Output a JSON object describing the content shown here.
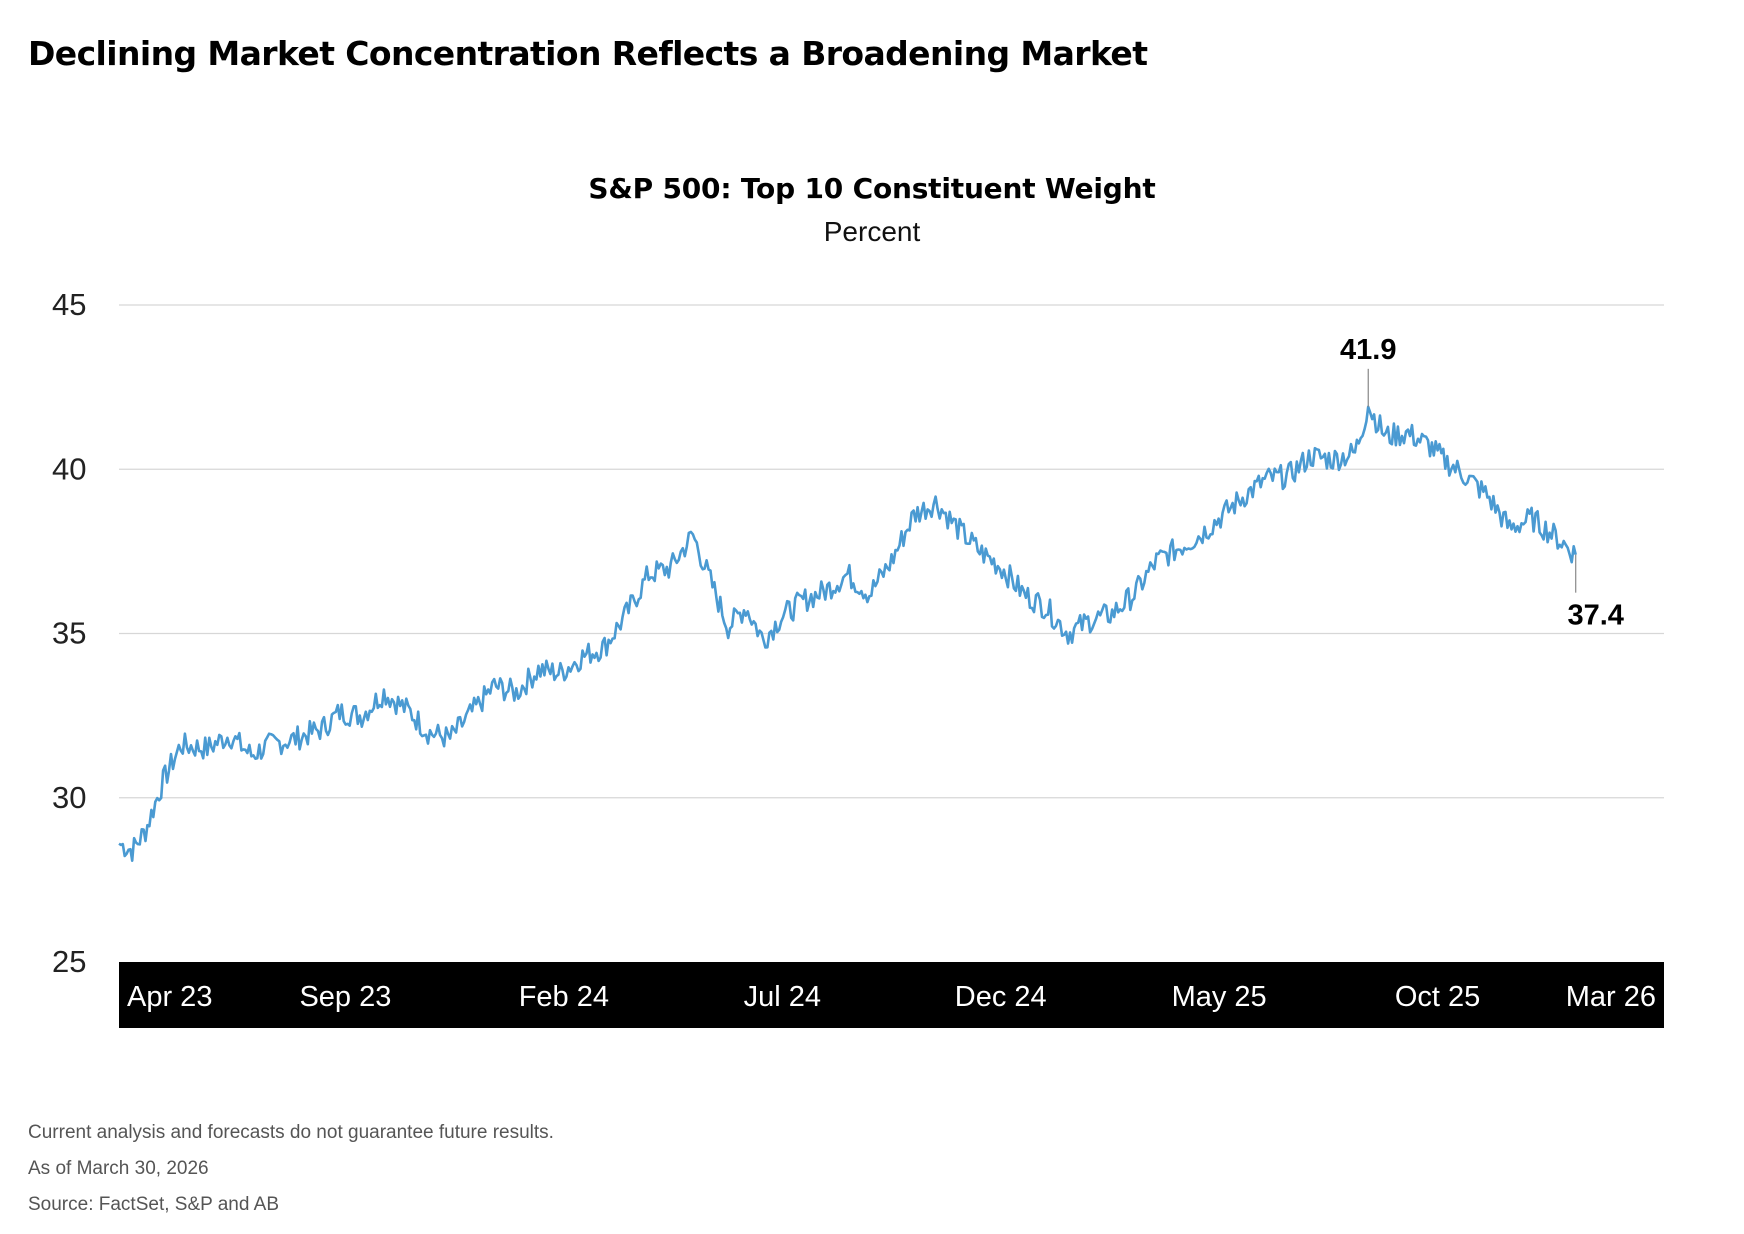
{
  "page_title": "Declining Market Concentration Reflects a Broadening Market",
  "chart_data": {
    "type": "line",
    "title": "S&P 500: Top 10 Constituent Weight",
    "subtitle": "Percent",
    "ylim": [
      25,
      45
    ],
    "yticks": [
      "45",
      "40",
      "35",
      "30",
      "25"
    ],
    "x_tick_labels": [
      "Apr 23",
      "Sep 23",
      "Feb 24",
      "Jul 24",
      "Dec 24",
      "May 25",
      "Oct 25",
      "Mar 26"
    ],
    "x_range": [
      "Apr 23",
      "Mar 26"
    ],
    "grid": true,
    "line_color": "#4a9ad2",
    "series": [
      {
        "x_months": [
          "Apr 23",
          "May 23",
          "Jun 23",
          "Jul 23",
          "Aug 23",
          "Sep 23",
          "Oct 23",
          "Nov 23",
          "Dec 23",
          "Jan 24",
          "Feb 24",
          "Mar 24",
          "Apr 24",
          "May 24",
          "Jun 24",
          "Jul 24",
          "Aug 24",
          "Sep 24",
          "Oct 24",
          "Nov 24",
          "Dec 24",
          "Jan 25",
          "Feb 25",
          "Mar 25",
          "Apr 25",
          "May 25",
          "Jun 25",
          "Jul 25",
          "Aug 25",
          "Sep 25",
          "Oct 25",
          "Nov 25",
          "Dec 25",
          "Jan 26",
          "Feb 26",
          "Mar 26"
        ],
        "points": [
          [
            0,
            28.6
          ],
          [
            0.3,
            28.4
          ],
          [
            0.6,
            29.0
          ],
          [
            1.0,
            30.5
          ],
          [
            1.4,
            31.6
          ],
          [
            2.0,
            31.5
          ],
          [
            2.5,
            31.9
          ],
          [
            3.0,
            31.3
          ],
          [
            3.4,
            31.6
          ],
          [
            4.0,
            31.8
          ],
          [
            4.6,
            32.1
          ],
          [
            5.0,
            32.6
          ],
          [
            5.5,
            32.5
          ],
          [
            6.0,
            33.2
          ],
          [
            6.6,
            32.6
          ],
          [
            7.0,
            32.0
          ],
          [
            7.5,
            31.8
          ],
          [
            8.0,
            32.6
          ],
          [
            8.5,
            33.4
          ],
          [
            9.0,
            33.2
          ],
          [
            9.5,
            33.9
          ],
          [
            10.0,
            33.8
          ],
          [
            10.5,
            34.3
          ],
          [
            11.0,
            34.6
          ],
          [
            11.5,
            35.6
          ],
          [
            12.0,
            36.8
          ],
          [
            12.5,
            37.0
          ],
          [
            13.0,
            38.0
          ],
          [
            13.4,
            36.6
          ],
          [
            13.8,
            35.2
          ],
          [
            14.2,
            35.8
          ],
          [
            14.6,
            34.8
          ],
          [
            15.0,
            35.5
          ],
          [
            15.5,
            36.0
          ],
          [
            16.0,
            36.3
          ],
          [
            16.5,
            36.8
          ],
          [
            17.0,
            36.2
          ],
          [
            17.5,
            37.2
          ],
          [
            18.0,
            38.6
          ],
          [
            18.5,
            39.0
          ],
          [
            19.0,
            38.2
          ],
          [
            19.5,
            37.5
          ],
          [
            20.0,
            37.0
          ],
          [
            20.5,
            36.2
          ],
          [
            21.0,
            35.8
          ],
          [
            21.5,
            35.0
          ],
          [
            22.0,
            35.4
          ],
          [
            22.5,
            35.6
          ],
          [
            23.0,
            36.2
          ],
          [
            23.5,
            37.2
          ],
          [
            24.0,
            37.6
          ],
          [
            24.5,
            38.0
          ],
          [
            25.0,
            38.6
          ],
          [
            25.5,
            39.2
          ],
          [
            26.0,
            39.7
          ],
          [
            26.5,
            39.8
          ],
          [
            27.0,
            40.4
          ],
          [
            27.5,
            40.3
          ],
          [
            28.0,
            40.5
          ],
          [
            28.3,
            41.9
          ],
          [
            28.7,
            41.0
          ],
          [
            29.2,
            41.1
          ],
          [
            29.7,
            40.7
          ],
          [
            30.0,
            40.3
          ],
          [
            30.5,
            39.8
          ],
          [
            31.0,
            39.2
          ],
          [
            31.5,
            38.2
          ],
          [
            32.0,
            38.5
          ],
          [
            32.5,
            38.0
          ],
          [
            33.0,
            37.4
          ]
        ]
      }
    ],
    "annotations": [
      {
        "label": "41.9",
        "at_month": 28.3,
        "value": 41.9
      },
      {
        "label": "37.4",
        "at_month": 33.0,
        "value": 37.4
      }
    ]
  },
  "footnotes": [
    "Current analysis and forecasts do not guarantee future results.",
    "As of March 30, 2026",
    "Source: FactSet, S&P and AB"
  ]
}
